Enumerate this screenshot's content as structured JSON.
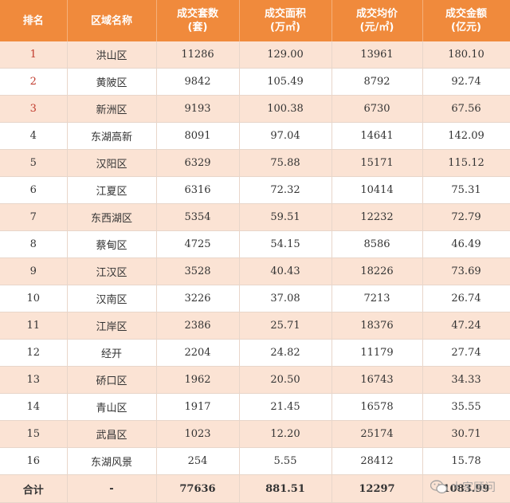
{
  "table": {
    "header": [
      [
        "排名"
      ],
      [
        "区域名称"
      ],
      [
        "成交套数",
        "(套)"
      ],
      [
        "成交面积",
        "(万㎡)"
      ],
      [
        "成交均价",
        "(元/㎡)"
      ],
      [
        "成交金额",
        "(亿元)"
      ]
    ],
    "rows": [
      [
        "1",
        "洪山区",
        "11286",
        "129.00",
        "13961",
        "180.10"
      ],
      [
        "2",
        "黄陂区",
        "9842",
        "105.49",
        "8792",
        "92.74"
      ],
      [
        "3",
        "新洲区",
        "9193",
        "100.38",
        "6730",
        "67.56"
      ],
      [
        "4",
        "东湖高新",
        "8091",
        "97.04",
        "14641",
        "142.09"
      ],
      [
        "5",
        "汉阳区",
        "6329",
        "75.88",
        "15171",
        "115.12"
      ],
      [
        "6",
        "江夏区",
        "6316",
        "72.32",
        "10414",
        "75.31"
      ],
      [
        "7",
        "东西湖区",
        "5354",
        "59.51",
        "12232",
        "72.79"
      ],
      [
        "8",
        "蔡甸区",
        "4725",
        "54.15",
        "8586",
        "46.49"
      ],
      [
        "9",
        "江汉区",
        "3528",
        "40.43",
        "18226",
        "73.69"
      ],
      [
        "10",
        "汉南区",
        "3226",
        "37.08",
        "7213",
        "26.74"
      ],
      [
        "11",
        "江岸区",
        "2386",
        "25.71",
        "18376",
        "47.24"
      ],
      [
        "12",
        "经开",
        "2204",
        "24.82",
        "11179",
        "27.74"
      ],
      [
        "13",
        "硚口区",
        "1962",
        "20.50",
        "16743",
        "34.33"
      ],
      [
        "14",
        "青山区",
        "1917",
        "21.45",
        "16578",
        "35.55"
      ],
      [
        "15",
        "武昌区",
        "1023",
        "12.20",
        "25174",
        "30.71"
      ],
      [
        "16",
        "东湖风景",
        "254",
        "5.55",
        "28412",
        "15.78"
      ]
    ],
    "total": [
      "合计",
      "-",
      "77636",
      "881.51",
      "12297",
      "1083.99"
    ]
  },
  "watermark": "大家顾问"
}
